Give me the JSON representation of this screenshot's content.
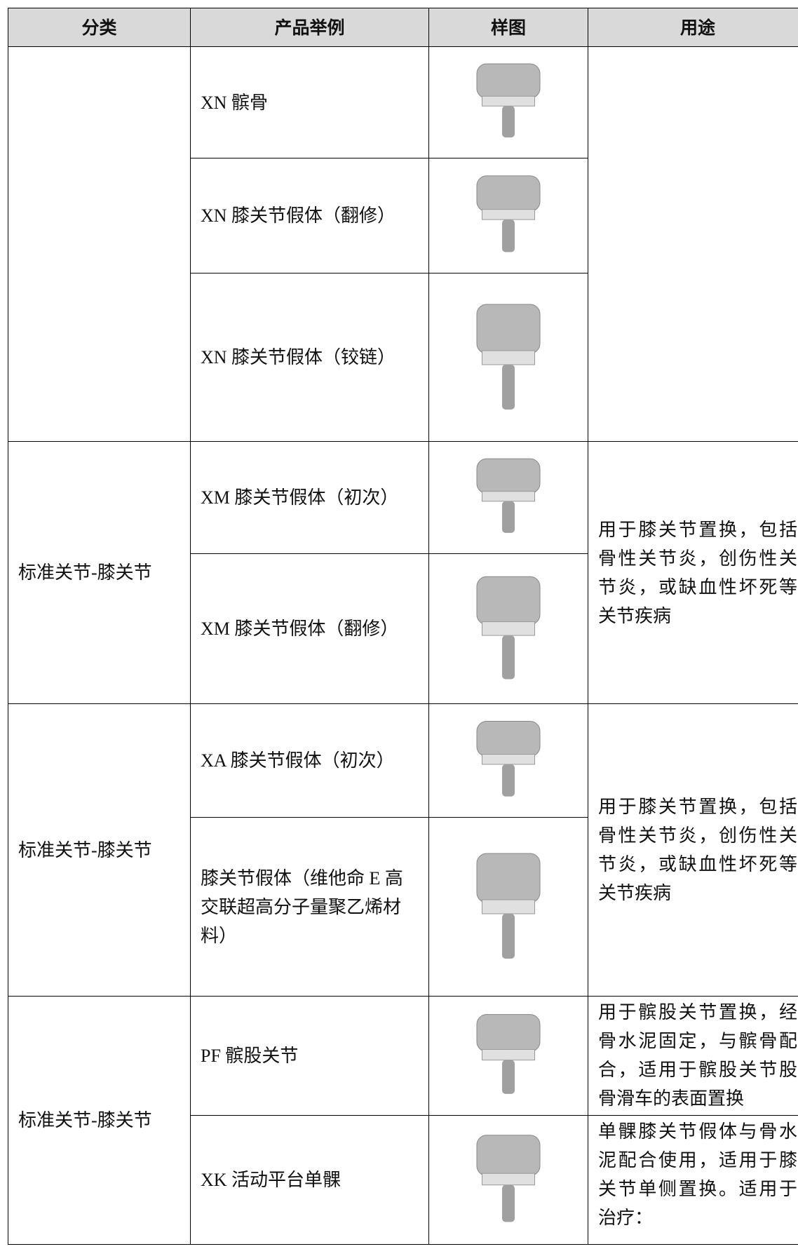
{
  "table": {
    "header": [
      "分类",
      "产品举例",
      "样图",
      "用途"
    ],
    "groups": [
      {
        "items": [
          "XN 髌骨",
          "XN 膝关节假体（翻修）",
          "XN 膝关节假体（铰链）"
        ]
      },
      {
        "category": "标准关节-膝关节",
        "items": [
          "XM 膝关节假体（初次）",
          "XM 膝关节假体（翻修）"
        ],
        "usage": "用于膝关节置换，包括骨性关节炎，创伤性关节炎，或缺血性坏死等关节疾病"
      },
      {
        "category": "标准关节-膝关节",
        "items": [
          "XA 膝关节假体（初次）",
          "膝关节假体（维他命 E 高交联超高分子量聚乙烯材料）"
        ],
        "usage": "用于膝关节置换，包括骨性关节炎，创伤性关节炎，或缺血性坏死等关节疾病"
      },
      {
        "category": "标准关节-膝关节",
        "items": [
          "PF 髌股关节",
          "XK 活动平台单髁"
        ],
        "usages": [
          "用于髌股关节置换，经骨水泥固定，与髌骨配合，适用于髌股关节股骨滑车的表面置换",
          "单髁膝关节假体与骨水泥配合使用，适用于膝关节单侧置换。适用于治疗："
        ]
      }
    ]
  }
}
